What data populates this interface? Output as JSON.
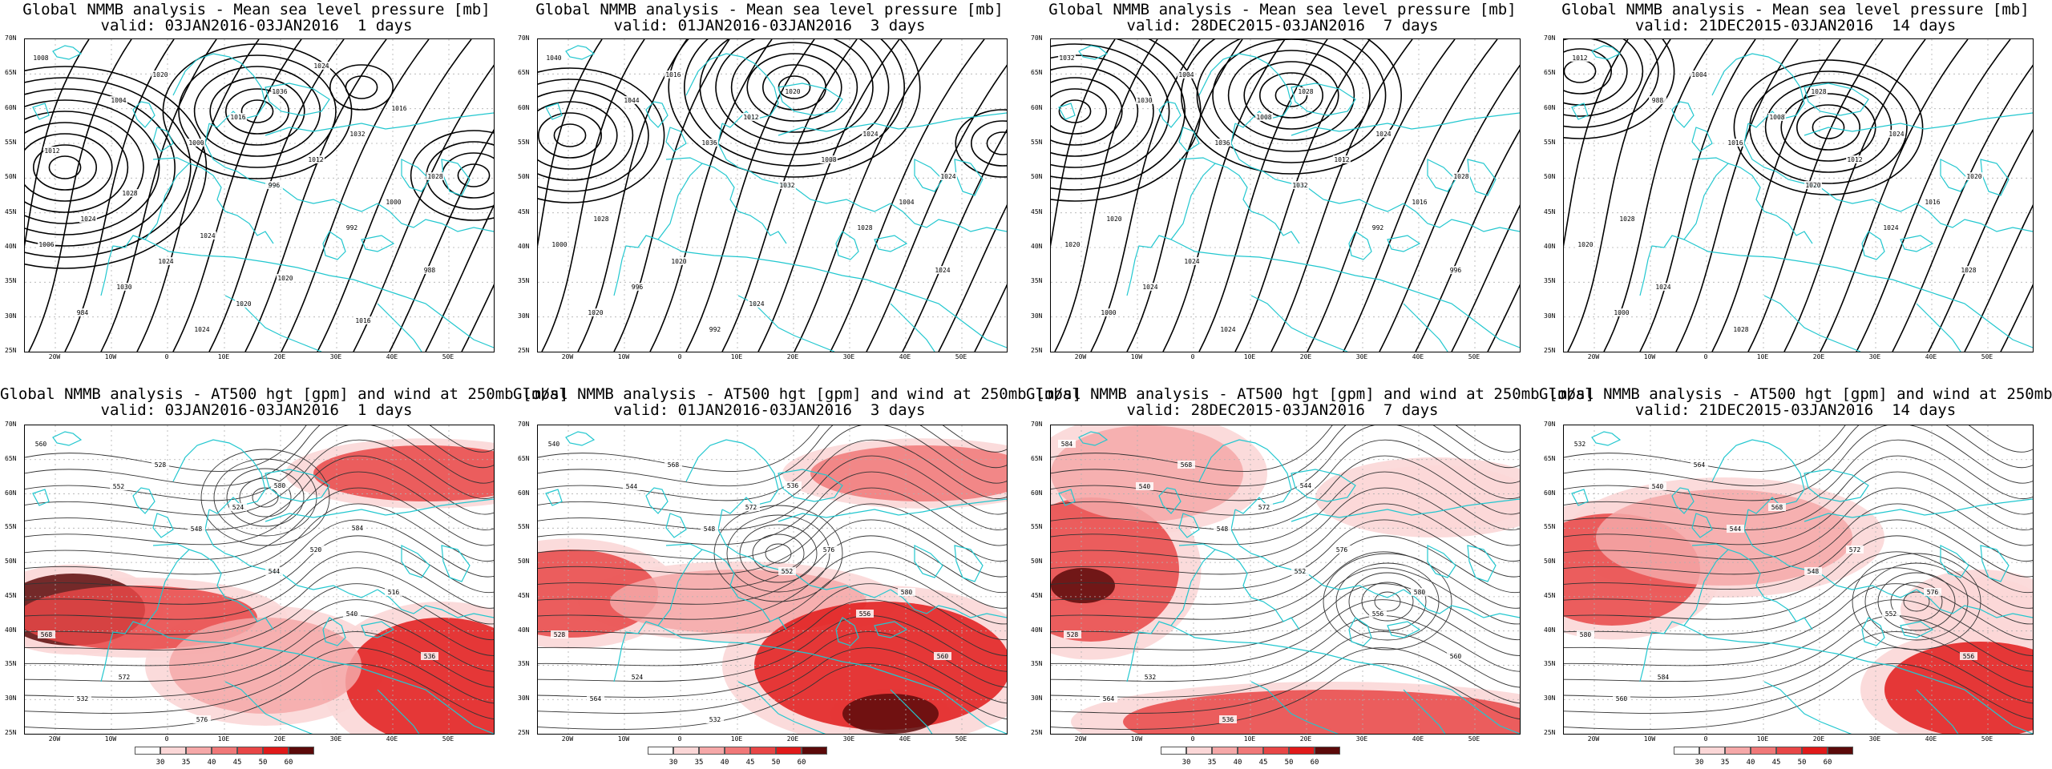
{
  "panels": [
    {
      "id": "p1",
      "row": 0,
      "col": 0,
      "title1": "Global NMMB analysis - Mean sea level pressure [mb]",
      "title2": "valid: 03JAN2016-03JAN2016  1 days",
      "contour_labels": [
        "1008",
        "1004",
        "1000",
        "996",
        "992",
        "988",
        "984",
        "1020",
        "1016",
        "1012",
        "1000",
        "1006",
        "1030",
        "1024",
        "1036",
        "1032",
        "1028",
        "1024",
        "1024",
        "1020",
        "1024",
        "1016",
        "1012",
        "1028",
        "1024",
        "1020",
        "1016"
      ]
    },
    {
      "id": "p2",
      "row": 0,
      "col": 1,
      "title1": "Global NMMB analysis - Mean sea level pressure [mb]",
      "title2": "valid: 01JAN2016-03JAN2016  3 days",
      "contour_labels": [
        "1040",
        "1044",
        "1036",
        "1032",
        "1028",
        "1024",
        "1020",
        "1016",
        "1012",
        "1008",
        "1004",
        "1000",
        "996",
        "992",
        "1020",
        "1024",
        "1024",
        "1028",
        "1020",
        "1024"
      ]
    },
    {
      "id": "p3",
      "row": 0,
      "col": 2,
      "title1": "Global NMMB analysis - Mean sea level pressure [mb]",
      "title2": "valid: 28DEC2015-03JAN2016  7 days",
      "contour_labels": [
        "1032",
        "1030",
        "1036",
        "1032",
        "992",
        "996",
        "1000",
        "1004",
        "1008",
        "1012",
        "1016",
        "1020",
        "1024",
        "1024",
        "1028",
        "1024",
        "1028",
        "1020",
        "1024"
      ]
    },
    {
      "id": "p4",
      "row": 0,
      "col": 3,
      "title1": "Global NMMB analysis - Mean sea level pressure [mb]",
      "title2": "valid: 21DEC2015-03JAN2016  14 days",
      "contour_labels": [
        "1012",
        "988",
        "1016",
        "1020",
        "1024",
        "1028",
        "1000",
        "1004",
        "1008",
        "1012",
        "1016",
        "1020",
        "1024",
        "1028",
        "1028",
        "1024",
        "1020",
        "1028"
      ]
    },
    {
      "id": "p5",
      "row": 1,
      "col": 0,
      "title1": "Global NMMB analysis - AT500 hgt [gpm] and wind at 250mb [m/s]",
      "title2": "valid: 03JAN2016-03JAN2016  1 days",
      "contour_labels": [
        "560",
        "552",
        "548",
        "544",
        "540",
        "536",
        "532",
        "528",
        "524",
        "520",
        "516",
        "568",
        "572",
        "576",
        "580",
        "584"
      ]
    },
    {
      "id": "p6",
      "row": 1,
      "col": 1,
      "title1": "Global NMMB analysis - AT500 hgt [gpm] and wind at 250mb [m/s]",
      "title2": "valid: 01JAN2016-03JAN2016  3 days",
      "contour_labels": [
        "540",
        "544",
        "548",
        "552",
        "556",
        "560",
        "564",
        "568",
        "572",
        "576",
        "580",
        "528",
        "524",
        "532",
        "536"
      ]
    },
    {
      "id": "p7",
      "row": 1,
      "col": 2,
      "title1": "Global NMMB analysis - AT500 hgt [gpm] and wind at 250mb [m/s]",
      "title2": "valid: 28DEC2015-03JAN2016  7 days",
      "contour_labels": [
        "584",
        "540",
        "548",
        "552",
        "556",
        "560",
        "564",
        "568",
        "572",
        "576",
        "580",
        "528",
        "532",
        "536",
        "544"
      ]
    },
    {
      "id": "p8",
      "row": 1,
      "col": 3,
      "title1": "Global NMMB analysis - AT500 hgt [gpm] and wind at 250mb [m/s]",
      "title2": "valid: 21DEC2015-03JAN2016  14 days",
      "contour_labels": [
        "532",
        "540",
        "544",
        "548",
        "552",
        "556",
        "560",
        "564",
        "568",
        "572",
        "576",
        "580",
        "584"
      ]
    }
  ],
  "axes": {
    "lat_labels": [
      "70N",
      "65N",
      "60N",
      "55N",
      "50N",
      "45N",
      "40N",
      "35N",
      "30N",
      "25N"
    ],
    "lon_labels": [
      "20W",
      "10W",
      "0",
      "10E",
      "20E",
      "30E",
      "40E",
      "50E"
    ]
  },
  "colorbar": {
    "ticks": [
      "30",
      "35",
      "40",
      "45",
      "50",
      "60"
    ],
    "colors": [
      "#ffffff",
      "#fbd7d7",
      "#f5a8a8",
      "#f07878",
      "#e84646",
      "#e01a1a",
      "#5c0a0a"
    ]
  },
  "colors": {
    "coast": "#22c7cf",
    "contour": "#000000",
    "grid": "#b0b0b0"
  }
}
